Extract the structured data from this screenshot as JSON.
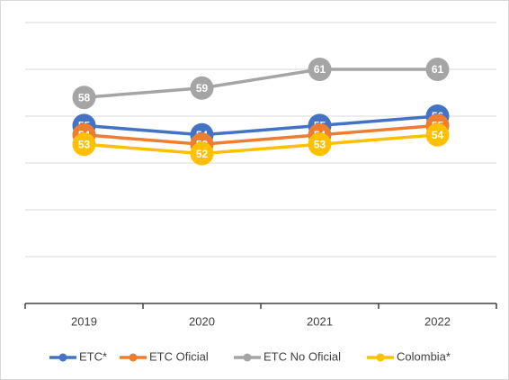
{
  "chart_data": {
    "type": "line",
    "categories": [
      "2019",
      "2020",
      "2021",
      "2022"
    ],
    "series": [
      {
        "name": "ETC*",
        "color": "#4472c4",
        "values": [
          55,
          54,
          55,
          56
        ]
      },
      {
        "name": "ETC Oficial",
        "color": "#ed7d31",
        "values": [
          54,
          53,
          54,
          55
        ]
      },
      {
        "name": "ETC No Oficial",
        "color": "#a5a5a5",
        "values": [
          58,
          59,
          61,
          61
        ]
      },
      {
        "name": "Colombia*",
        "color": "#ffc000",
        "values": [
          53,
          52,
          53,
          54
        ]
      }
    ],
    "ylim": [
      36,
      66
    ],
    "yticks": [
      36,
      41,
      46,
      51,
      56,
      61,
      66
    ],
    "grid": true,
    "legend": "bottom"
  }
}
